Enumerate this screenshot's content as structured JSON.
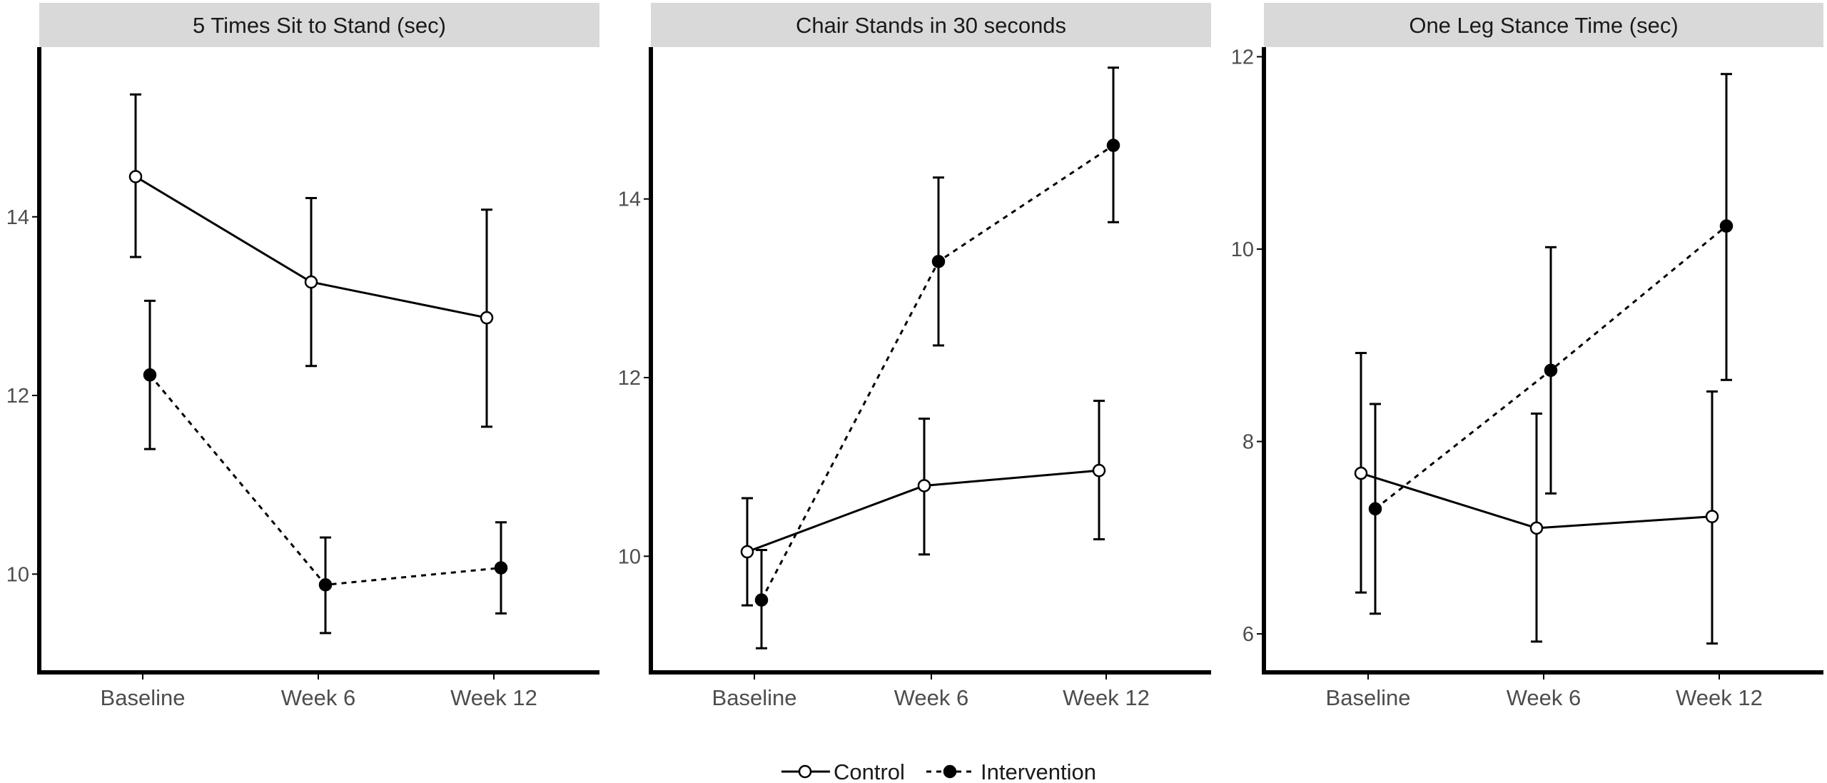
{
  "legend": {
    "position": "bottom",
    "entries": [
      {
        "label": "Control",
        "marker": "open-circle",
        "line": "solid"
      },
      {
        "label": "Intervention",
        "marker": "filled-circle",
        "line": "dashed"
      }
    ]
  },
  "colors": {
    "strip_bg": "#d9d9d9",
    "ink": "#000000",
    "tick_text": "#4d4d4d",
    "label_text": "#1a1a1a"
  },
  "chart_data": [
    {
      "type": "line",
      "title": "5 Times Sit to Stand (sec)",
      "xlabel": "",
      "ylabel": "",
      "categories": [
        "Baseline",
        "Week 6",
        "Week 12"
      ],
      "ylim": [
        8.9,
        15.9
      ],
      "yticks": [
        10,
        12,
        14
      ],
      "grid": false,
      "series": [
        {
          "name": "Control",
          "values": [
            14.45,
            13.27,
            12.87
          ],
          "error_low": [
            13.55,
            12.33,
            11.65
          ],
          "error_high": [
            15.37,
            14.21,
            14.08
          ]
        },
        {
          "name": "Intervention",
          "values": [
            12.23,
            9.88,
            10.07
          ],
          "error_low": [
            11.4,
            9.34,
            9.56
          ],
          "error_high": [
            13.06,
            10.41,
            10.58
          ]
        }
      ]
    },
    {
      "type": "line",
      "title": "Chair Stands in 30 seconds",
      "xlabel": "",
      "ylabel": "",
      "categories": [
        "Baseline",
        "Week 6",
        "Week 12"
      ],
      "ylim": [
        8.7,
        15.7
      ],
      "yticks": [
        10,
        12,
        14
      ],
      "grid": false,
      "series": [
        {
          "name": "Control",
          "values": [
            10.05,
            10.79,
            10.96
          ],
          "error_low": [
            9.45,
            10.02,
            10.19
          ],
          "error_high": [
            10.65,
            11.54,
            11.74
          ]
        },
        {
          "name": "Intervention",
          "values": [
            9.51,
            13.3,
            14.6
          ],
          "error_low": [
            8.97,
            12.36,
            13.74
          ],
          "error_high": [
            10.07,
            14.24,
            15.47
          ]
        }
      ]
    },
    {
      "type": "line",
      "title": "One Leg Stance Time (sec)",
      "xlabel": "",
      "ylabel": "",
      "categories": [
        "Baseline",
        "Week 6",
        "Week 12"
      ],
      "ylim": [
        5.6,
        12.1
      ],
      "yticks": [
        6,
        8,
        10,
        12
      ],
      "grid": false,
      "series": [
        {
          "name": "Control",
          "values": [
            7.67,
            7.1,
            7.22
          ],
          "error_low": [
            6.43,
            5.92,
            5.9
          ],
          "error_high": [
            8.92,
            8.29,
            8.52
          ]
        },
        {
          "name": "Intervention",
          "values": [
            7.3,
            8.74,
            10.24
          ],
          "error_low": [
            6.21,
            7.46,
            8.64
          ],
          "error_high": [
            8.39,
            10.02,
            11.82
          ]
        }
      ]
    }
  ]
}
